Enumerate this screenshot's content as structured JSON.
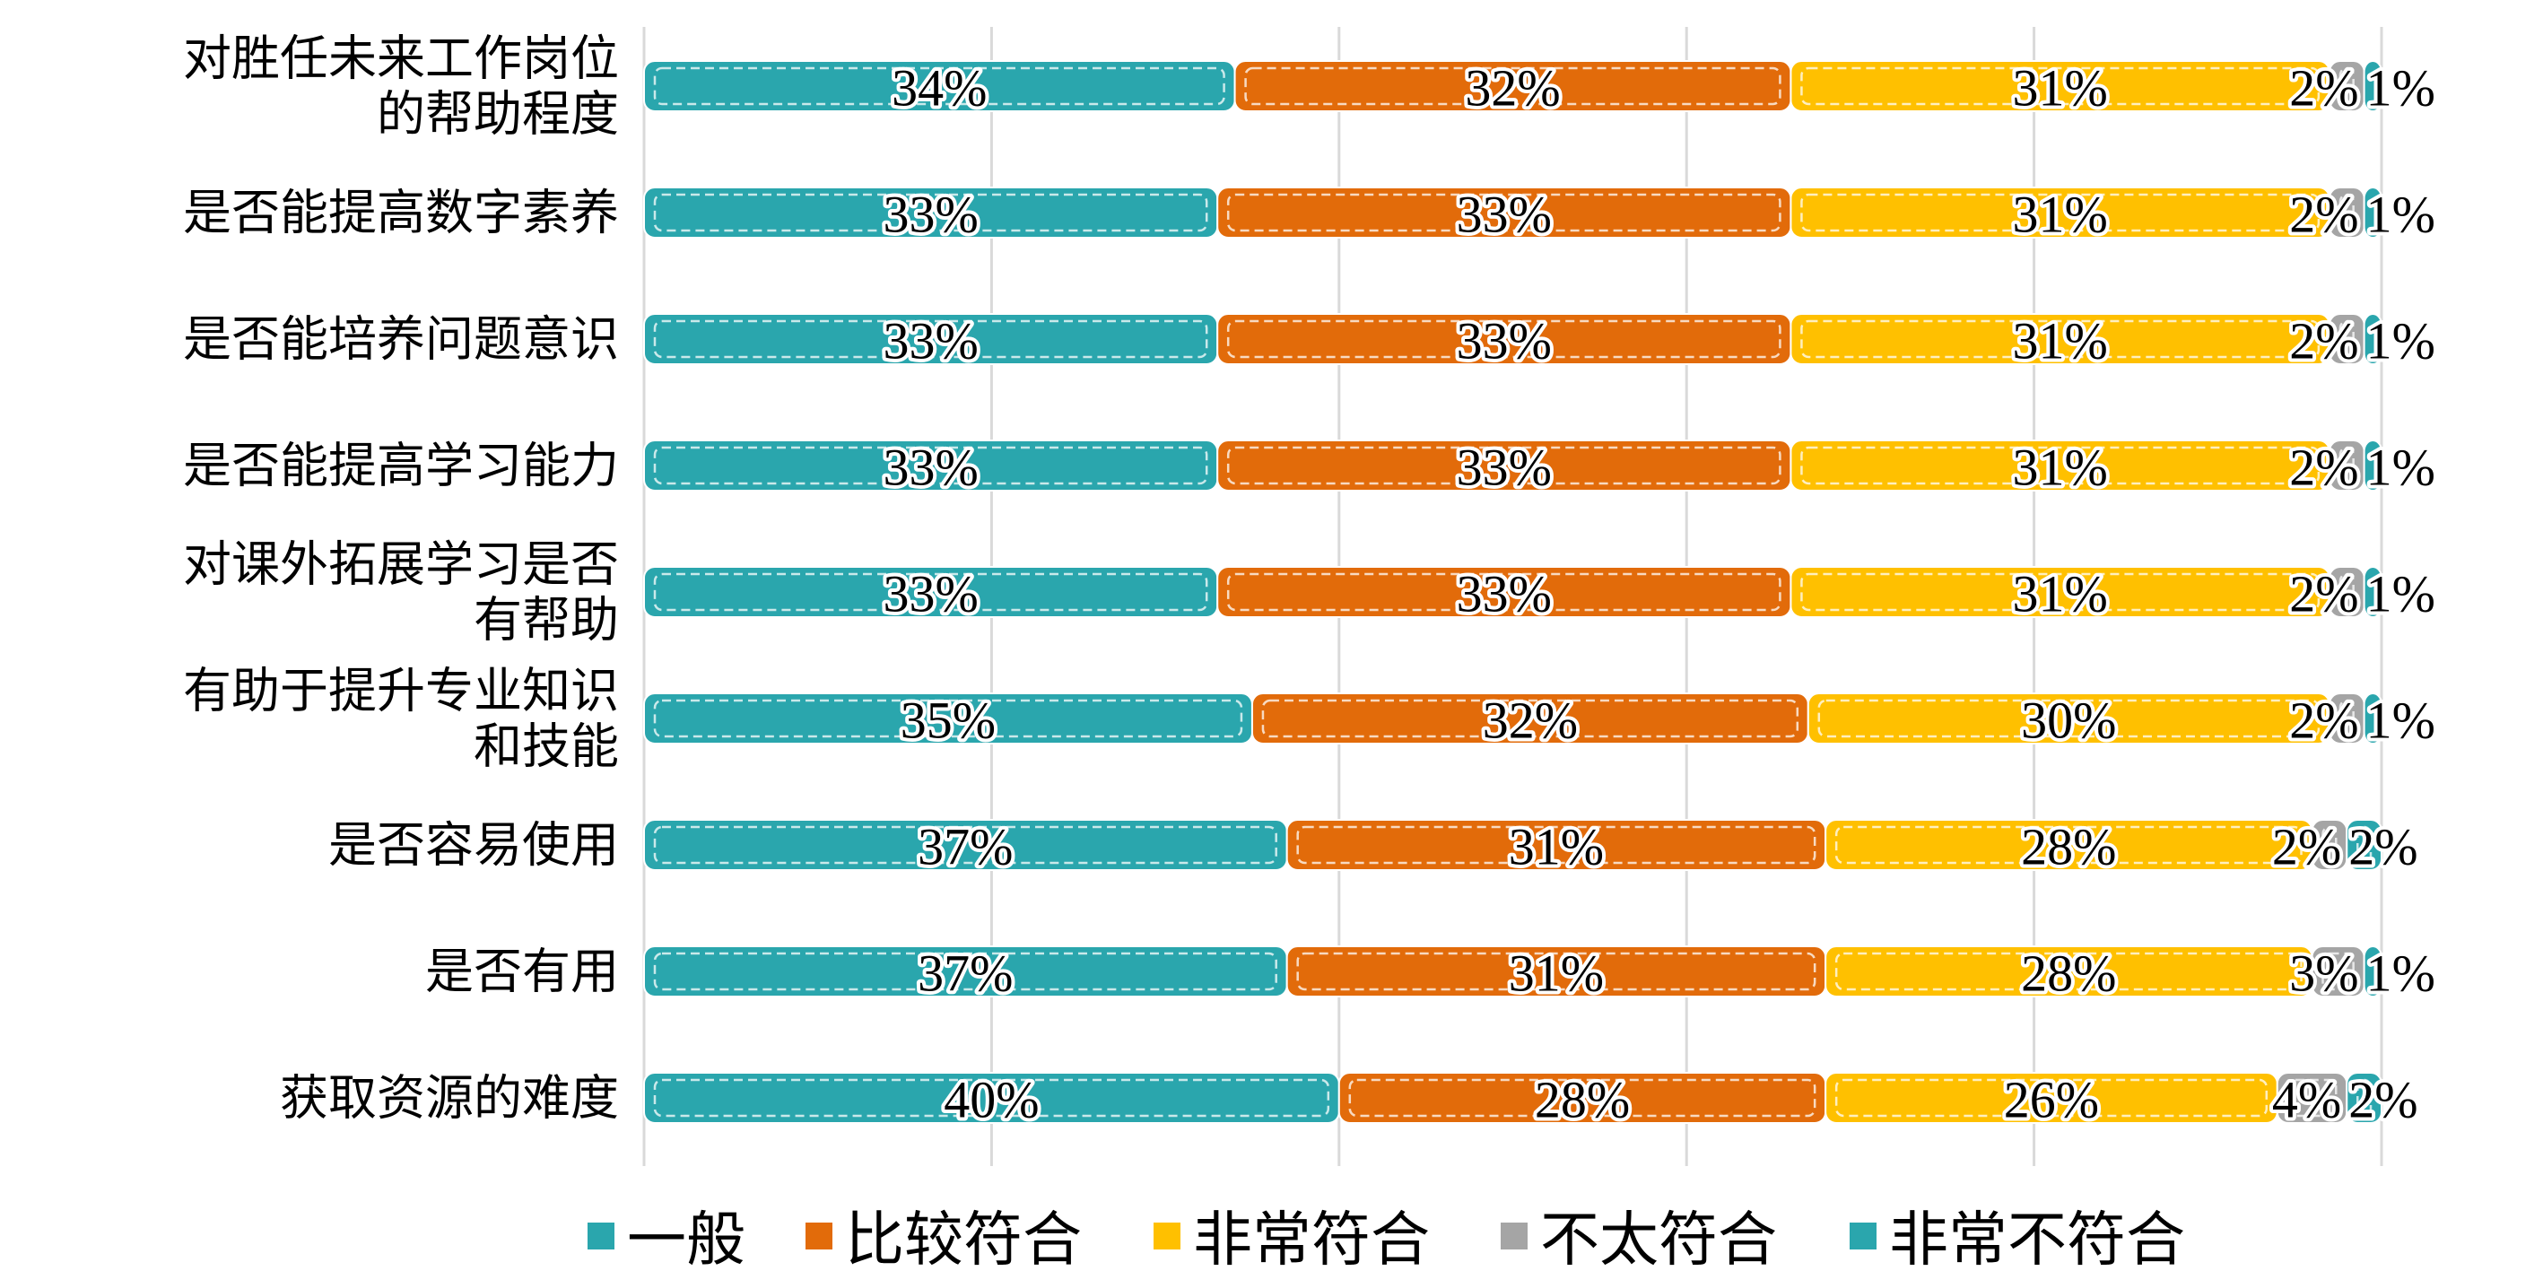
{
  "chart_data": {
    "type": "bar",
    "orientation": "horizontal",
    "stacked": "percent",
    "categories": [
      "对胜任未来工作岗位的帮助程度",
      "是否能提高数字素养",
      "是否能培养问题意识",
      "是否能提高学习能力",
      "对课外拓展学习是否有帮助",
      "有助于提升专业知识和技能",
      "是否容易使用",
      "是否有用",
      "获取资源的难度"
    ],
    "category_lines": [
      [
        "对胜任未来工作岗位",
        "的帮助程度"
      ],
      [
        "是否能提高数字素养"
      ],
      [
        "是否能培养问题意识"
      ],
      [
        "是否能提高学习能力"
      ],
      [
        "对课外拓展学习是否",
        "有帮助"
      ],
      [
        "有助于提升专业知识",
        "和技能"
      ],
      [
        "是否容易使用"
      ],
      [
        "是否有用"
      ],
      [
        "获取资源的难度"
      ]
    ],
    "series": [
      {
        "name": "一般",
        "color": "#2aa6ad",
        "values": [
          34,
          33,
          33,
          33,
          33,
          35,
          37,
          37,
          40
        ]
      },
      {
        "name": "比较符合",
        "color": "#e26b0a",
        "values": [
          32,
          33,
          33,
          33,
          33,
          32,
          31,
          31,
          28
        ]
      },
      {
        "name": "非常符合",
        "color": "#ffc000",
        "values": [
          31,
          31,
          31,
          31,
          31,
          30,
          28,
          28,
          26
        ]
      },
      {
        "name": "不太符合",
        "color": "#a5a5a5",
        "values": [
          2,
          2,
          2,
          2,
          2,
          2,
          2,
          3,
          4
        ]
      },
      {
        "name": "非常不符合",
        "color": "#2aa6ad",
        "values": [
          1,
          1,
          1,
          1,
          1,
          1,
          2,
          1,
          2
        ]
      }
    ],
    "value_suffix": "%",
    "xlim": [
      0,
      100
    ],
    "grid": true,
    "legend_position": "bottom",
    "title": "",
    "xlabel": "",
    "ylabel": ""
  }
}
